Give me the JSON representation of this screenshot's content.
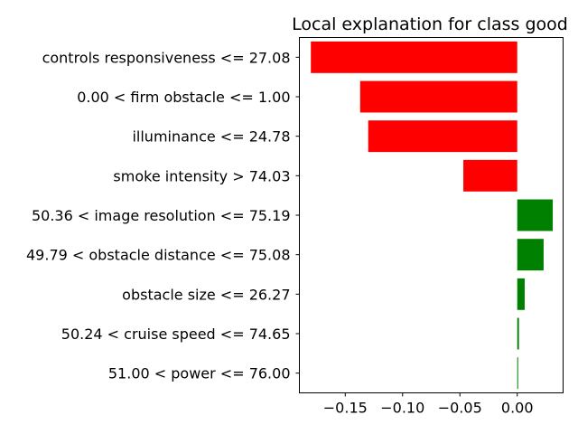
{
  "chart_data": {
    "type": "bar",
    "orientation": "horizontal",
    "title": "Local explanation for class good",
    "xlabel": "",
    "ylabel": "",
    "xlim": [
      -0.19,
      0.04
    ],
    "xticks": [
      -0.15,
      -0.1,
      -0.05,
      0.0
    ],
    "xtick_labels": [
      "−0.15",
      "−0.10",
      "−0.05",
      "0.00"
    ],
    "positive_color": "#008000",
    "negative_color": "#ff0000",
    "bars": [
      {
        "label": "controls responsiveness <= 27.08",
        "value": -0.18
      },
      {
        "label": "0.00 < firm obstacle <= 1.00",
        "value": -0.137
      },
      {
        "label": "illuminance <= 24.78",
        "value": -0.13
      },
      {
        "label": "smoke intensity > 74.03",
        "value": -0.047
      },
      {
        "label": "50.36 < image resolution <= 75.19",
        "value": 0.031
      },
      {
        "label": "49.79 < obstacle distance <= 75.08",
        "value": 0.023
      },
      {
        "label": "obstacle size <= 26.27",
        "value": 0.0065
      },
      {
        "label": "50.24 < cruise speed <= 74.65",
        "value": 0.0015
      },
      {
        "label": "51.00 < power <= 76.00",
        "value": 0.0008
      }
    ]
  }
}
